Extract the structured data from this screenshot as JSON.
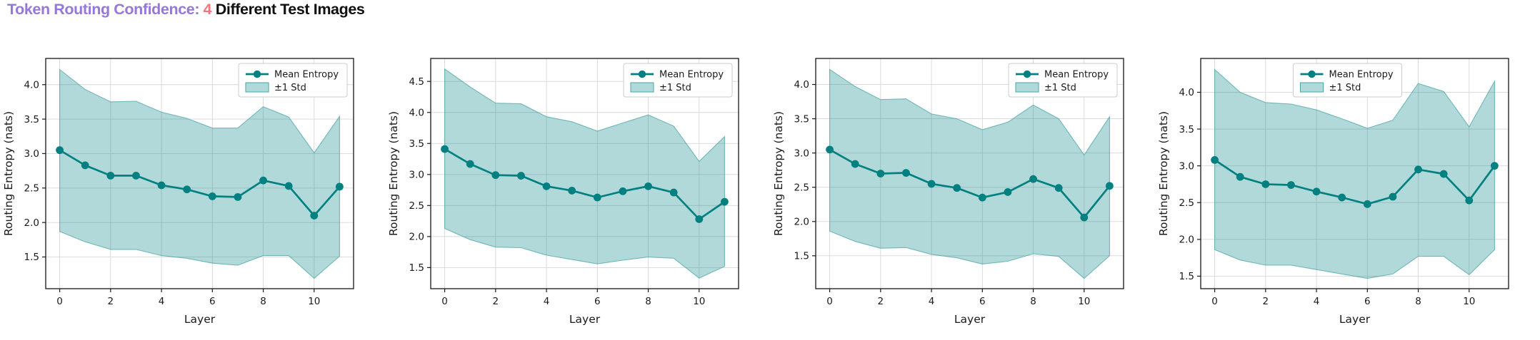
{
  "header": {
    "title_part_purple": "Token Routing Confidence: ",
    "title_part_number": "4 ",
    "title_part_dark": "Different Test Images",
    "title_colors": {
      "purple": "#9678d8",
      "number": "#f7737d",
      "dark": "#101010"
    }
  },
  "colors": {
    "line": "#008080",
    "band_fill": "#008080",
    "band_fill_opacity": 0.3,
    "band_edge": "#4da5a5",
    "grid": "#d7d7d7",
    "spine": "#262626",
    "tick": "#1a1a1a",
    "legend_border": "#cccccc",
    "legend_bg": "#ffffff"
  },
  "chart_data": [
    {
      "type": "line",
      "xlabel": "Layer",
      "ylabel": "Routing Entropy (nats)",
      "x": [
        0,
        1,
        2,
        3,
        4,
        5,
        6,
        7,
        8,
        9,
        10,
        11
      ],
      "xticks": [
        0,
        2,
        4,
        6,
        8,
        10
      ],
      "yticks": [
        1.5,
        2.0,
        2.5,
        3.0,
        3.5,
        4.0
      ],
      "xlim": [
        -0.55,
        11.55
      ],
      "ylim": [
        1.04,
        4.38
      ],
      "series": [
        {
          "name": "Mean Entropy",
          "values": [
            3.05,
            2.83,
            2.68,
            2.68,
            2.54,
            2.48,
            2.38,
            2.37,
            2.61,
            2.53,
            2.1,
            2.52
          ]
        },
        {
          "name": "+1 Std upper",
          "values": [
            4.22,
            3.93,
            3.75,
            3.76,
            3.6,
            3.51,
            3.37,
            3.37,
            3.68,
            3.53,
            3.01,
            3.54
          ]
        },
        {
          "name": "-1 Std lower",
          "values": [
            1.87,
            1.72,
            1.61,
            1.61,
            1.52,
            1.48,
            1.41,
            1.38,
            1.52,
            1.52,
            1.19,
            1.51
          ]
        }
      ],
      "legend": {
        "entries": [
          "Mean Entropy",
          "±1 Std"
        ],
        "position": "upper-right"
      }
    },
    {
      "type": "line",
      "xlabel": "Layer",
      "ylabel": "Routing Entropy (nats)",
      "x": [
        0,
        1,
        2,
        3,
        4,
        5,
        6,
        7,
        8,
        9,
        10,
        11
      ],
      "xticks": [
        0,
        2,
        4,
        6,
        8,
        10
      ],
      "yticks": [
        1.5,
        2.0,
        2.5,
        3.0,
        3.5,
        4.0,
        4.5
      ],
      "xlim": [
        -0.55,
        11.55
      ],
      "ylim": [
        1.16,
        4.87
      ],
      "series": [
        {
          "name": "Mean Entropy",
          "values": [
            3.41,
            3.17,
            2.99,
            2.98,
            2.81,
            2.74,
            2.63,
            2.73,
            2.81,
            2.71,
            2.28,
            2.56
          ]
        },
        {
          "name": "+1 Std upper",
          "values": [
            4.7,
            4.41,
            4.15,
            4.14,
            3.93,
            3.85,
            3.7,
            3.83,
            3.96,
            3.78,
            3.21,
            3.61
          ]
        },
        {
          "name": "-1 Std lower",
          "values": [
            2.13,
            1.95,
            1.83,
            1.82,
            1.7,
            1.63,
            1.56,
            1.62,
            1.67,
            1.65,
            1.33,
            1.52
          ]
        }
      ],
      "legend": {
        "entries": [
          "Mean Entropy",
          "±1 Std"
        ],
        "position": "upper-right"
      }
    },
    {
      "type": "line",
      "xlabel": "Layer",
      "ylabel": "Routing Entropy (nats)",
      "x": [
        0,
        1,
        2,
        3,
        4,
        5,
        6,
        7,
        8,
        9,
        10,
        11
      ],
      "xticks": [
        0,
        2,
        4,
        6,
        8,
        10
      ],
      "yticks": [
        1.5,
        2.0,
        2.5,
        3.0,
        3.5,
        4.0
      ],
      "xlim": [
        -0.55,
        11.55
      ],
      "ylim": [
        1.02,
        4.38
      ],
      "series": [
        {
          "name": "Mean Entropy",
          "values": [
            3.05,
            2.84,
            2.7,
            2.71,
            2.55,
            2.49,
            2.35,
            2.43,
            2.62,
            2.49,
            2.06,
            2.52
          ]
        },
        {
          "name": "+1 Std upper",
          "values": [
            4.22,
            3.97,
            3.78,
            3.79,
            3.57,
            3.5,
            3.34,
            3.45,
            3.7,
            3.5,
            2.97,
            3.53
          ]
        },
        {
          "name": "-1 Std lower",
          "values": [
            1.86,
            1.71,
            1.61,
            1.62,
            1.52,
            1.47,
            1.38,
            1.42,
            1.53,
            1.49,
            1.17,
            1.5
          ]
        }
      ],
      "legend": {
        "entries": [
          "Mean Entropy",
          "±1 Std"
        ],
        "position": "upper-right"
      }
    },
    {
      "type": "line",
      "xlabel": "Layer",
      "ylabel": "Routing Entropy (nats)",
      "x": [
        0,
        1,
        2,
        3,
        4,
        5,
        6,
        7,
        8,
        9,
        10,
        11
      ],
      "xticks": [
        0,
        2,
        4,
        6,
        8,
        10
      ],
      "yticks": [
        1.5,
        2.0,
        2.5,
        3.0,
        3.5,
        4.0
      ],
      "xlim": [
        -0.55,
        11.55
      ],
      "ylim": [
        1.33,
        4.46
      ],
      "series": [
        {
          "name": "Mean Entropy",
          "values": [
            3.08,
            2.85,
            2.75,
            2.74,
            2.65,
            2.57,
            2.48,
            2.58,
            2.95,
            2.89,
            2.53,
            3.0
          ]
        },
        {
          "name": "+1 Std upper",
          "values": [
            4.31,
            4.0,
            3.86,
            3.84,
            3.76,
            3.64,
            3.51,
            3.62,
            4.12,
            4.01,
            3.53,
            4.15
          ]
        },
        {
          "name": "-1 Std lower",
          "values": [
            1.86,
            1.72,
            1.65,
            1.65,
            1.59,
            1.53,
            1.47,
            1.53,
            1.77,
            1.77,
            1.52,
            1.86
          ]
        }
      ],
      "legend": {
        "entries": [
          "Mean Entropy",
          "±1 Std"
        ],
        "position": "upper-center"
      }
    }
  ]
}
